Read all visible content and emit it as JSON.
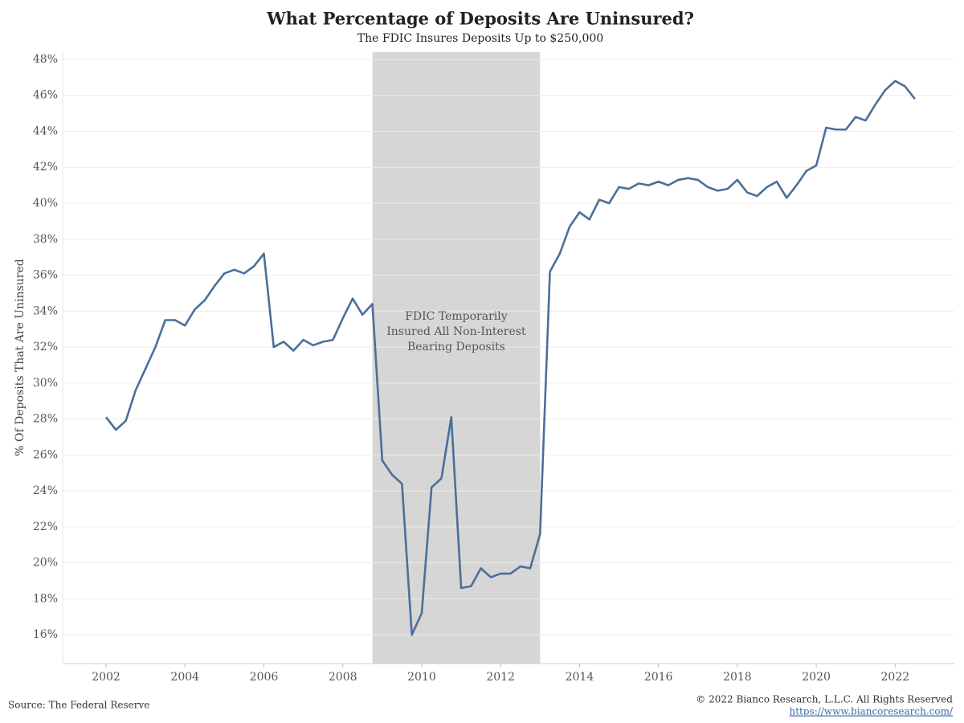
{
  "chart_data": {
    "type": "line",
    "title": "What Percentage of Deposits Are Uninsured?",
    "subtitle": "The FDIC Insures Deposits Up to $250,000",
    "y_label": "% Of Deposits That Are Uninsured",
    "source": "Source: The Federal Reserve",
    "copyright": "© 2022 Bianco Research, L.L.C. All Rights Reserved",
    "url": "https://www.biancoresearch.com/",
    "annotation": [
      "FDIC Temporarily",
      "Insured All Non-Interest",
      "Bearing Deposits"
    ],
    "shaded_region": [
      2008.75,
      2013
    ],
    "shade_color": "#d6d6d6",
    "x": [
      2002,
      2002.25,
      2002.5,
      2002.75,
      2003,
      2003.25,
      2003.5,
      2003.75,
      2004,
      2004.25,
      2004.5,
      2004.75,
      2005,
      2005.25,
      2005.5,
      2005.75,
      2006,
      2006.25,
      2006.5,
      2006.75,
      2007,
      2007.25,
      2007.5,
      2007.75,
      2008,
      2008.25,
      2008.5,
      2008.75,
      2009,
      2009.25,
      2009.5,
      2009.75,
      2010,
      2010.25,
      2010.5,
      2010.75,
      2011,
      2011.25,
      2011.5,
      2011.75,
      2012,
      2012.25,
      2012.5,
      2012.75,
      2013,
      2013.25,
      2013.5,
      2013.75,
      2014,
      2014.25,
      2014.5,
      2014.75,
      2015,
      2015.25,
      2015.5,
      2015.75,
      2016,
      2016.25,
      2016.5,
      2016.75,
      2017,
      2017.25,
      2017.5,
      2017.75,
      2018,
      2018.25,
      2018.5,
      2018.75,
      2019,
      2019.25,
      2019.5,
      2019.75,
      2020,
      2020.25,
      2020.5,
      2020.75,
      2021,
      2021.25,
      2021.5,
      2021.75,
      2022,
      2022.25,
      2022.5
    ],
    "series": [
      {
        "color": "#4b6f99",
        "values": [
          28.1,
          27.4,
          27.9,
          29.6,
          30.8,
          32.0,
          33.5,
          33.5,
          33.2,
          34.1,
          34.6,
          35.4,
          36.1,
          36.3,
          36.1,
          36.5,
          37.2,
          32.0,
          32.3,
          31.8,
          32.4,
          32.1,
          32.3,
          32.4,
          33.6,
          34.7,
          33.8,
          34.4,
          25.7,
          24.9,
          24.4,
          16.0,
          17.2,
          24.2,
          24.7,
          28.1,
          18.6,
          18.7,
          19.7,
          19.2,
          19.4,
          19.4,
          19.8,
          19.7,
          21.6,
          36.2,
          37.2,
          38.7,
          39.5,
          39.1,
          40.2,
          40.0,
          40.9,
          40.8,
          41.1,
          41.0,
          41.2,
          41.0,
          41.3,
          41.4,
          41.3,
          40.9,
          40.7,
          40.8,
          41.3,
          40.6,
          40.4,
          40.9,
          41.2,
          40.3,
          41.0,
          41.8,
          42.1,
          44.2,
          44.1,
          44.1,
          44.8,
          44.6,
          45.5,
          46.3,
          46.8,
          46.5,
          45.8
        ]
      }
    ],
    "xlim": [
      2000.9,
      2023.5
    ],
    "ylim": [
      14.4,
      48.4
    ],
    "xticks": [
      2002,
      2004,
      2006,
      2008,
      2010,
      2012,
      2014,
      2016,
      2018,
      2020,
      2022
    ],
    "yticks": [
      {
        "value": 16,
        "label": "16%"
      },
      {
        "value": 18,
        "label": "18%"
      },
      {
        "value": 20,
        "label": "20%"
      },
      {
        "value": 22,
        "label": "22%"
      },
      {
        "value": 24,
        "label": "24%"
      },
      {
        "value": 26,
        "label": "26%"
      },
      {
        "value": 28,
        "label": "28%"
      },
      {
        "value": 30,
        "label": "30%"
      },
      {
        "value": 32,
        "label": "32%"
      },
      {
        "value": 34,
        "label": "34%"
      },
      {
        "value": 36,
        "label": "36%"
      },
      {
        "value": 38,
        "label": "38%"
      },
      {
        "value": 40,
        "label": "40%"
      },
      {
        "value": 42,
        "label": "42%"
      },
      {
        "value": 44,
        "label": "44%"
      },
      {
        "value": 46,
        "label": "46%"
      },
      {
        "value": 48,
        "label": "48%"
      }
    ],
    "grid": true
  }
}
